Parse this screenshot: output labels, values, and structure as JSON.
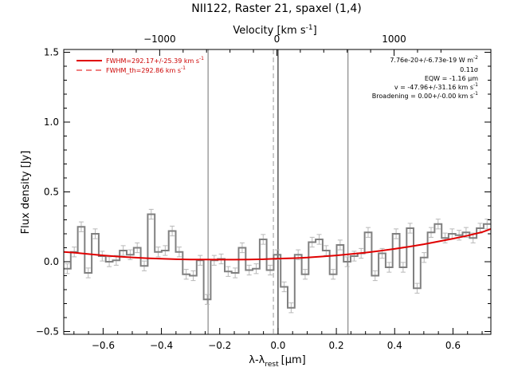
{
  "chart_data": {
    "type": "line",
    "title": "NII122, Raster 21, spaxel (1,4)",
    "xlabel": "λ-λ",
    "xlabel_sub": "rest",
    "xlabel_unit": "[μm]",
    "ylabel": "Flux density [Jy]",
    "top_axis_label": "Velocity [km s",
    "top_axis_label_exp": "-1",
    "top_axis_label_close": "]",
    "xlim": [
      -0.735,
      0.73
    ],
    "ylim": [
      -0.52,
      1.52
    ],
    "x_ticks": [
      -0.6,
      -0.4,
      -0.2,
      0.0,
      0.2,
      0.4,
      0.6
    ],
    "x_tick_labels": [
      "−0.6",
      "−0.4",
      "−0.2",
      "0.0",
      "0.2",
      "0.4",
      "0.6"
    ],
    "y_ticks": [
      -0.5,
      0.0,
      0.5,
      1.0,
      1.5
    ],
    "y_tick_labels": [
      "−0.5",
      "0.0",
      "0.5",
      "1.0",
      "1.5"
    ],
    "top_ticks_velocity": [
      -1000,
      0,
      1000
    ],
    "top_tick_labels": [
      "−1000",
      "0",
      "1000"
    ],
    "top_tick_x_positions_um": [
      -0.406,
      -0.004,
      0.398
    ],
    "vertical_lines_um": [
      -0.24,
      0.0,
      0.24
    ],
    "dashed_line_um": -0.016,
    "legend": [
      {
        "label": "FWHM=292.17+/-25.39 km s",
        "exp": "-1",
        "style": "solid"
      },
      {
        "label": "FWHM_th=292.86 km s",
        "exp": "-1",
        "style": "dashed"
      }
    ],
    "annotations": [
      {
        "text": "7.76e-20+/-6.73e-19 W m",
        "exp": "-2"
      },
      {
        "text": "0.11σ",
        "exp": ""
      },
      {
        "text": "EQW = -1.16 μm",
        "exp": ""
      },
      {
        "text": "v = -47.96+/-31.16 km s",
        "exp": "-1"
      },
      {
        "text": "Broadening = 0.00+/-0.00 km s",
        "exp": "-1"
      }
    ],
    "series": [
      {
        "style": "step",
        "x": [
          -0.723,
          -0.699,
          -0.675,
          -0.651,
          -0.627,
          -0.603,
          -0.579,
          -0.555,
          -0.531,
          -0.507,
          -0.483,
          -0.459,
          -0.435,
          -0.411,
          -0.387,
          -0.363,
          -0.339,
          -0.315,
          -0.291,
          -0.267,
          -0.243,
          -0.219,
          -0.195,
          -0.171,
          -0.147,
          -0.123,
          -0.099,
          -0.075,
          -0.051,
          -0.027,
          -0.003,
          0.021,
          0.045,
          0.069,
          0.093,
          0.117,
          0.141,
          0.165,
          0.189,
          0.213,
          0.237,
          0.261,
          0.285,
          0.309,
          0.333,
          0.357,
          0.381,
          0.405,
          0.429,
          0.453,
          0.477,
          0.501,
          0.525,
          0.549,
          0.573,
          0.597,
          0.621,
          0.645,
          0.669,
          0.693,
          0.717
        ],
        "y": [
          -0.05,
          0.07,
          0.25,
          -0.08,
          0.2,
          0.04,
          0.0,
          0.01,
          0.08,
          0.05,
          0.1,
          -0.03,
          0.34,
          0.07,
          0.08,
          0.22,
          0.07,
          -0.09,
          -0.1,
          0.01,
          -0.27,
          0.01,
          0.02,
          -0.07,
          -0.08,
          0.1,
          -0.06,
          -0.05,
          0.16,
          -0.06,
          0.05,
          -0.18,
          -0.33,
          0.05,
          -0.09,
          0.14,
          0.16,
          0.08,
          -0.09,
          0.12,
          0.0,
          0.04,
          0.06,
          0.21,
          -0.1,
          0.06,
          -0.04,
          0.2,
          -0.04,
          0.24,
          -0.19,
          0.03,
          0.21,
          0.27,
          0.17,
          0.2,
          0.19,
          0.21,
          0.17,
          0.24,
          0.27
        ],
        "err": 0.035,
        "color": "#808080"
      },
      {
        "style": "line",
        "x": [
          -0.735,
          -0.7,
          -0.65,
          -0.6,
          -0.55,
          -0.5,
          -0.45,
          -0.4,
          -0.35,
          -0.3,
          -0.25,
          -0.2,
          -0.15,
          -0.1,
          -0.05,
          0.0,
          0.05,
          0.1,
          0.15,
          0.2,
          0.25,
          0.3,
          0.35,
          0.4,
          0.45,
          0.5,
          0.55,
          0.6,
          0.65,
          0.7,
          0.73
        ],
        "y": [
          0.07,
          0.065,
          0.055,
          0.045,
          0.037,
          0.031,
          0.025,
          0.021,
          0.018,
          0.016,
          0.016,
          0.015,
          0.015,
          0.016,
          0.018,
          0.022,
          0.025,
          0.03,
          0.037,
          0.045,
          0.055,
          0.065,
          0.078,
          0.092,
          0.108,
          0.125,
          0.145,
          0.165,
          0.187,
          0.212,
          0.235
        ],
        "color": "#e00000"
      }
    ],
    "colors": {
      "fit": "#e00000",
      "data": "#808080",
      "error": "#b8b8b8",
      "vlines": "#707070",
      "legend_text": "#cc0000"
    }
  }
}
